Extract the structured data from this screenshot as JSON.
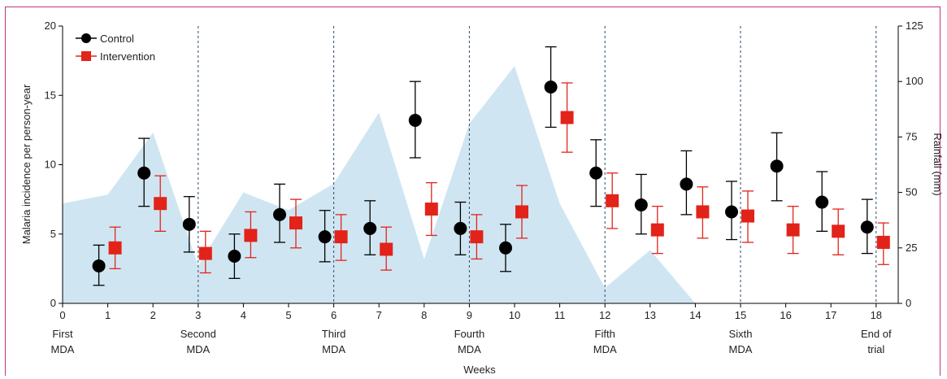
{
  "chart_data": {
    "type": "scatter",
    "xlabel": "Weeks",
    "ylabel": "Malaria incidence per person-year",
    "y2label": "Rainfall (mm)",
    "ylim": [
      0,
      20
    ],
    "y2lim": [
      0,
      125
    ],
    "yticks": [
      "0",
      "5",
      "10",
      "15",
      "20"
    ],
    "y2ticks": [
      "0",
      "25",
      "50",
      "75",
      "100",
      "125"
    ],
    "week_labels": [
      "0",
      "1",
      "2",
      "3",
      "4",
      "5",
      "6",
      "7",
      "8",
      "9",
      "10",
      "11",
      "12",
      "13",
      "14",
      "15",
      "16",
      "17",
      "18"
    ],
    "mda_lines": [
      3,
      6,
      9,
      12,
      15,
      18
    ],
    "annotations": [
      {
        "week": 0,
        "lines": [
          "First",
          "MDA"
        ]
      },
      {
        "week": 3,
        "lines": [
          "Second",
          "MDA"
        ]
      },
      {
        "week": 6,
        "lines": [
          "Third",
          "MDA"
        ]
      },
      {
        "week": 9,
        "lines": [
          "Fourth",
          "MDA"
        ]
      },
      {
        "week": 12,
        "lines": [
          "Fifth",
          "MDA"
        ]
      },
      {
        "week": 15,
        "lines": [
          "Sixth",
          "MDA"
        ]
      },
      {
        "week": 18,
        "lines": [
          "End of",
          "trial"
        ]
      }
    ],
    "series": [
      {
        "name": "Control",
        "color": "#000000",
        "marker": "circle",
        "points": [
          {
            "x": 1,
            "y": 2.7,
            "lo": 1.3,
            "hi": 4.2
          },
          {
            "x": 2,
            "y": 9.4,
            "lo": 7.0,
            "hi": 11.9
          },
          {
            "x": 3,
            "y": 5.7,
            "lo": 3.7,
            "hi": 7.7
          },
          {
            "x": 4,
            "y": 3.4,
            "lo": 1.8,
            "hi": 5.0
          },
          {
            "x": 5,
            "y": 6.4,
            "lo": 4.4,
            "hi": 8.6
          },
          {
            "x": 6,
            "y": 4.8,
            "lo": 3.0,
            "hi": 6.7
          },
          {
            "x": 7,
            "y": 5.4,
            "lo": 3.5,
            "hi": 7.4
          },
          {
            "x": 8,
            "y": 13.2,
            "lo": 10.5,
            "hi": 16.0
          },
          {
            "x": 9,
            "y": 5.4,
            "lo": 3.5,
            "hi": 7.3
          },
          {
            "x": 10,
            "y": 4.0,
            "lo": 2.3,
            "hi": 5.7
          },
          {
            "x": 11,
            "y": 15.6,
            "lo": 12.7,
            "hi": 18.5
          },
          {
            "x": 12,
            "y": 9.4,
            "lo": 7.0,
            "hi": 11.8
          },
          {
            "x": 13,
            "y": 7.1,
            "lo": 5.0,
            "hi": 9.3
          },
          {
            "x": 14,
            "y": 8.6,
            "lo": 6.4,
            "hi": 11.0
          },
          {
            "x": 15,
            "y": 6.6,
            "lo": 4.6,
            "hi": 8.8
          },
          {
            "x": 16,
            "y": 9.9,
            "lo": 7.4,
            "hi": 12.3
          },
          {
            "x": 17,
            "y": 7.3,
            "lo": 5.2,
            "hi": 9.5
          },
          {
            "x": 18,
            "y": 5.5,
            "lo": 3.6,
            "hi": 7.5
          }
        ]
      },
      {
        "name": "Intervention",
        "color": "#e2231a",
        "marker": "square",
        "points": [
          {
            "x": 1,
            "y": 4.0,
            "lo": 2.5,
            "hi": 5.5
          },
          {
            "x": 2,
            "y": 7.2,
            "lo": 5.2,
            "hi": 9.2
          },
          {
            "x": 3,
            "y": 3.6,
            "lo": 2.2,
            "hi": 5.2
          },
          {
            "x": 4,
            "y": 4.9,
            "lo": 3.3,
            "hi": 6.6
          },
          {
            "x": 5,
            "y": 5.8,
            "lo": 4.0,
            "hi": 7.5
          },
          {
            "x": 6,
            "y": 4.8,
            "lo": 3.1,
            "hi": 6.4
          },
          {
            "x": 7,
            "y": 3.9,
            "lo": 2.4,
            "hi": 5.5
          },
          {
            "x": 8,
            "y": 6.8,
            "lo": 4.9,
            "hi": 8.7
          },
          {
            "x": 9,
            "y": 4.8,
            "lo": 3.2,
            "hi": 6.4
          },
          {
            "x": 10,
            "y": 6.6,
            "lo": 4.7,
            "hi": 8.5
          },
          {
            "x": 11,
            "y": 13.4,
            "lo": 10.9,
            "hi": 15.9
          },
          {
            "x": 12,
            "y": 7.4,
            "lo": 5.4,
            "hi": 9.4
          },
          {
            "x": 13,
            "y": 5.3,
            "lo": 3.6,
            "hi": 7.0
          },
          {
            "x": 14,
            "y": 6.6,
            "lo": 4.7,
            "hi": 8.4
          },
          {
            "x": 15,
            "y": 6.3,
            "lo": 4.4,
            "hi": 8.1
          },
          {
            "x": 16,
            "y": 5.3,
            "lo": 3.6,
            "hi": 7.0
          },
          {
            "x": 17,
            "y": 5.2,
            "lo": 3.5,
            "hi": 6.8
          },
          {
            "x": 18,
            "y": 4.4,
            "lo": 2.8,
            "hi": 5.8
          }
        ]
      }
    ],
    "rainfall": {
      "color": "#cfe6f2",
      "points": [
        {
          "x": 0,
          "y": 45
        },
        {
          "x": 1,
          "y": 49
        },
        {
          "x": 2,
          "y": 77
        },
        {
          "x": 3,
          "y": 17
        },
        {
          "x": 4,
          "y": 50
        },
        {
          "x": 5,
          "y": 42
        },
        {
          "x": 6,
          "y": 54
        },
        {
          "x": 7,
          "y": 86
        },
        {
          "x": 8,
          "y": 20
        },
        {
          "x": 9,
          "y": 81
        },
        {
          "x": 10,
          "y": 107
        },
        {
          "x": 11,
          "y": 45
        },
        {
          "x": 12,
          "y": 7
        },
        {
          "x": 13,
          "y": 24
        },
        {
          "x": 14,
          "y": 0
        }
      ]
    },
    "legend_position": "top-left"
  }
}
